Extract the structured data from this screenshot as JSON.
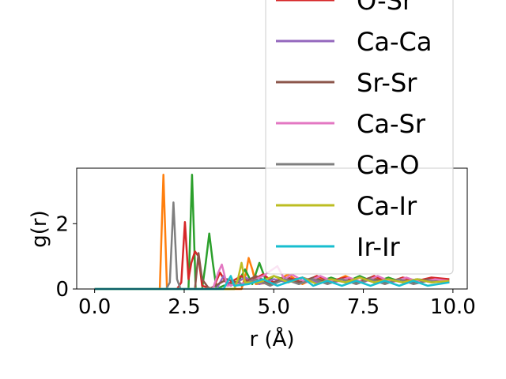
{
  "chart_data": {
    "type": "line",
    "title": "",
    "xlabel": "r (Å)",
    "ylabel": "g(r)",
    "xlim": [
      -0.5,
      10.4
    ],
    "ylim": [
      0,
      3.7
    ],
    "x_ticks": [
      0.0,
      2.5,
      5.0,
      7.5,
      10.0
    ],
    "x_tick_labels": [
      "0.0",
      "2.5",
      "5.0",
      "7.5",
      "10.0"
    ],
    "y_ticks": [
      0,
      2
    ],
    "y_tick_labels": [
      "0",
      "2"
    ],
    "grid": false,
    "legend_position": "upper-right",
    "series": [
      {
        "name": "",
        "color": "#ff7f0e",
        "points": [
          [
            0.0,
            0
          ],
          [
            1.7,
            0
          ],
          [
            1.82,
            0
          ],
          [
            1.92,
            3.5
          ],
          [
            2.02,
            0
          ],
          [
            2.15,
            0
          ],
          [
            4.1,
            0
          ],
          [
            4.22,
            0.45
          ],
          [
            4.3,
            0.95
          ],
          [
            4.4,
            0.6
          ],
          [
            4.5,
            0.15
          ],
          [
            5.0,
            0.2
          ],
          [
            5.4,
            0.45
          ],
          [
            5.8,
            0.15
          ],
          [
            6.2,
            0.35
          ],
          [
            6.6,
            0.2
          ],
          [
            7.0,
            0.4
          ],
          [
            7.4,
            0.2
          ],
          [
            7.8,
            0.35
          ],
          [
            8.2,
            0.2
          ],
          [
            8.6,
            0.35
          ],
          [
            9.0,
            0.2
          ],
          [
            9.4,
            0.3
          ],
          [
            9.9,
            0.25
          ]
        ]
      },
      {
        "name": "",
        "color": "#2ca02c",
        "points": [
          [
            0.0,
            0
          ],
          [
            2.5,
            0
          ],
          [
            2.62,
            0
          ],
          [
            2.72,
            3.5
          ],
          [
            2.82,
            0
          ],
          [
            3.0,
            0
          ],
          [
            3.1,
            0.8
          ],
          [
            3.2,
            1.7
          ],
          [
            3.3,
            0.8
          ],
          [
            3.4,
            0
          ],
          [
            3.6,
            0.1
          ],
          [
            4.0,
            0.2
          ],
          [
            4.2,
            0.6
          ],
          [
            4.4,
            0.15
          ],
          [
            4.6,
            0.8
          ],
          [
            4.8,
            0.2
          ],
          [
            5.0,
            0.4
          ],
          [
            5.4,
            0.25
          ],
          [
            5.8,
            0.35
          ],
          [
            6.2,
            0.2
          ],
          [
            6.6,
            0.35
          ],
          [
            7.0,
            0.2
          ],
          [
            7.4,
            0.4
          ],
          [
            7.8,
            0.2
          ],
          [
            8.2,
            0.35
          ],
          [
            8.6,
            0.2
          ],
          [
            9.0,
            0.3
          ],
          [
            9.4,
            0.25
          ],
          [
            9.9,
            0.3
          ]
        ]
      },
      {
        "name": "O-Sr",
        "color": "#d62728",
        "points": [
          [
            0.0,
            0
          ],
          [
            2.3,
            0
          ],
          [
            2.42,
            0.2
          ],
          [
            2.52,
            2.05
          ],
          [
            2.62,
            0.3
          ],
          [
            2.7,
            0.8
          ],
          [
            2.8,
            1.15
          ],
          [
            2.9,
            1.0
          ],
          [
            3.0,
            0.1
          ],
          [
            3.3,
            0
          ],
          [
            3.5,
            0.5
          ],
          [
            3.7,
            0.15
          ],
          [
            4.1,
            0.4
          ],
          [
            4.3,
            0.2
          ],
          [
            4.7,
            0.45
          ],
          [
            5.0,
            0.2
          ],
          [
            5.4,
            0.35
          ],
          [
            5.8,
            0.2
          ],
          [
            6.2,
            0.4
          ],
          [
            6.6,
            0.25
          ],
          [
            7.0,
            0.35
          ],
          [
            7.4,
            0.2
          ],
          [
            7.8,
            0.4
          ],
          [
            8.2,
            0.2
          ],
          [
            8.6,
            0.35
          ],
          [
            9.0,
            0.25
          ],
          [
            9.4,
            0.35
          ],
          [
            9.9,
            0.3
          ]
        ]
      },
      {
        "name": "Ca-Ca",
        "color": "#9467bd",
        "points": [
          [
            0.0,
            0
          ],
          [
            3.4,
            0
          ],
          [
            3.6,
            0.4
          ],
          [
            3.8,
            0.1
          ],
          [
            4.2,
            0.35
          ],
          [
            4.6,
            0.15
          ],
          [
            5.0,
            0.3
          ],
          [
            5.4,
            0.2
          ],
          [
            5.8,
            0.35
          ],
          [
            6.2,
            0.2
          ],
          [
            6.6,
            0.3
          ],
          [
            7.0,
            0.2
          ],
          [
            7.4,
            0.35
          ],
          [
            7.8,
            0.2
          ],
          [
            8.2,
            0.3
          ],
          [
            8.6,
            0.2
          ],
          [
            9.0,
            0.3
          ],
          [
            9.4,
            0.2
          ],
          [
            9.9,
            0.25
          ]
        ]
      },
      {
        "name": "Sr-Sr",
        "color": "#8c564b",
        "points": [
          [
            0.0,
            0
          ],
          [
            2.8,
            0
          ],
          [
            2.9,
            1.1
          ],
          [
            3.0,
            0.3
          ],
          [
            3.2,
            0
          ],
          [
            3.7,
            0.3
          ],
          [
            4.1,
            0.15
          ],
          [
            4.5,
            0.4
          ],
          [
            4.9,
            0.15
          ],
          [
            5.3,
            0.35
          ],
          [
            5.7,
            0.2
          ],
          [
            6.1,
            0.35
          ],
          [
            6.5,
            0.2
          ],
          [
            6.9,
            0.3
          ],
          [
            7.3,
            0.2
          ],
          [
            7.7,
            0.35
          ],
          [
            8.1,
            0.2
          ],
          [
            8.5,
            0.3
          ],
          [
            8.9,
            0.2
          ],
          [
            9.3,
            0.3
          ],
          [
            9.9,
            0.2
          ]
        ]
      },
      {
        "name": "Ca-Sr",
        "color": "#e377c2",
        "points": [
          [
            0.0,
            0
          ],
          [
            3.3,
            0
          ],
          [
            3.45,
            0.5
          ],
          [
            3.55,
            0.75
          ],
          [
            3.7,
            0.1
          ],
          [
            4.3,
            0.2
          ],
          [
            4.7,
            0.4
          ],
          [
            5.1,
            0.7
          ],
          [
            5.3,
            0.3
          ],
          [
            5.5,
            0.45
          ],
          [
            5.9,
            0.2
          ],
          [
            6.3,
            0.4
          ],
          [
            6.7,
            0.2
          ],
          [
            7.1,
            0.35
          ],
          [
            7.5,
            0.2
          ],
          [
            7.9,
            0.4
          ],
          [
            8.3,
            0.2
          ],
          [
            8.7,
            0.35
          ],
          [
            9.1,
            0.2
          ],
          [
            9.5,
            0.3
          ],
          [
            9.9,
            0.25
          ]
        ]
      },
      {
        "name": "Ca-O",
        "color": "#7f7f7f",
        "points": [
          [
            0.0,
            0
          ],
          [
            2.0,
            0
          ],
          [
            2.1,
            0.2
          ],
          [
            2.2,
            2.65
          ],
          [
            2.3,
            0.3
          ],
          [
            2.4,
            0
          ],
          [
            3.9,
            0
          ],
          [
            4.0,
            0.3
          ],
          [
            4.1,
            0.1
          ],
          [
            4.5,
            0.3
          ],
          [
            4.9,
            0.1
          ],
          [
            5.3,
            0.3
          ],
          [
            5.7,
            0.15
          ],
          [
            6.1,
            0.3
          ],
          [
            6.5,
            0.15
          ],
          [
            6.9,
            0.3
          ],
          [
            7.3,
            0.15
          ],
          [
            7.7,
            0.3
          ],
          [
            8.1,
            0.15
          ],
          [
            8.5,
            0.3
          ],
          [
            8.9,
            0.15
          ],
          [
            9.3,
            0.25
          ],
          [
            9.9,
            0.2
          ]
        ]
      },
      {
        "name": "Ca-Ir",
        "color": "#bcbd22",
        "points": [
          [
            0.0,
            0
          ],
          [
            3.9,
            0
          ],
          [
            4.0,
            0.3
          ],
          [
            4.1,
            0.8
          ],
          [
            4.2,
            0.2
          ],
          [
            4.6,
            0.2
          ],
          [
            5.0,
            0.4
          ],
          [
            5.4,
            0.2
          ],
          [
            5.8,
            0.35
          ],
          [
            6.2,
            0.15
          ],
          [
            6.6,
            0.3
          ],
          [
            7.0,
            0.2
          ],
          [
            7.4,
            0.35
          ],
          [
            7.8,
            0.2
          ],
          [
            8.2,
            0.3
          ],
          [
            8.6,
            0.2
          ],
          [
            9.0,
            0.3
          ],
          [
            9.4,
            0.2
          ],
          [
            9.9,
            0.25
          ]
        ]
      },
      {
        "name": "Ir-Ir",
        "color": "#17becf",
        "points": [
          [
            0.0,
            0
          ],
          [
            3.6,
            0
          ],
          [
            3.7,
            0.2
          ],
          [
            3.8,
            0.4
          ],
          [
            3.9,
            0.1
          ],
          [
            4.3,
            0.15
          ],
          [
            4.7,
            0.3
          ],
          [
            5.1,
            0.1
          ],
          [
            5.5,
            0.25
          ],
          [
            5.8,
            0.35
          ],
          [
            6.1,
            0.1
          ],
          [
            6.5,
            0.25
          ],
          [
            6.9,
            0.1
          ],
          [
            7.3,
            0.25
          ],
          [
            7.7,
            0.1
          ],
          [
            8.1,
            0.25
          ],
          [
            8.5,
            0.1
          ],
          [
            8.9,
            0.25
          ],
          [
            9.3,
            0.1
          ],
          [
            9.9,
            0.2
          ]
        ]
      }
    ],
    "legend": [
      {
        "label": "O-Sr",
        "color": "#d62728"
      },
      {
        "label": "Ca-Ca",
        "color": "#9467bd"
      },
      {
        "label": "Sr-Sr",
        "color": "#8c564b"
      },
      {
        "label": "Ca-Sr",
        "color": "#e377c2"
      },
      {
        "label": "Ca-O",
        "color": "#7f7f7f"
      },
      {
        "label": "Ca-Ir",
        "color": "#bcbd22"
      },
      {
        "label": "Ir-Ir",
        "color": "#17becf"
      }
    ]
  }
}
